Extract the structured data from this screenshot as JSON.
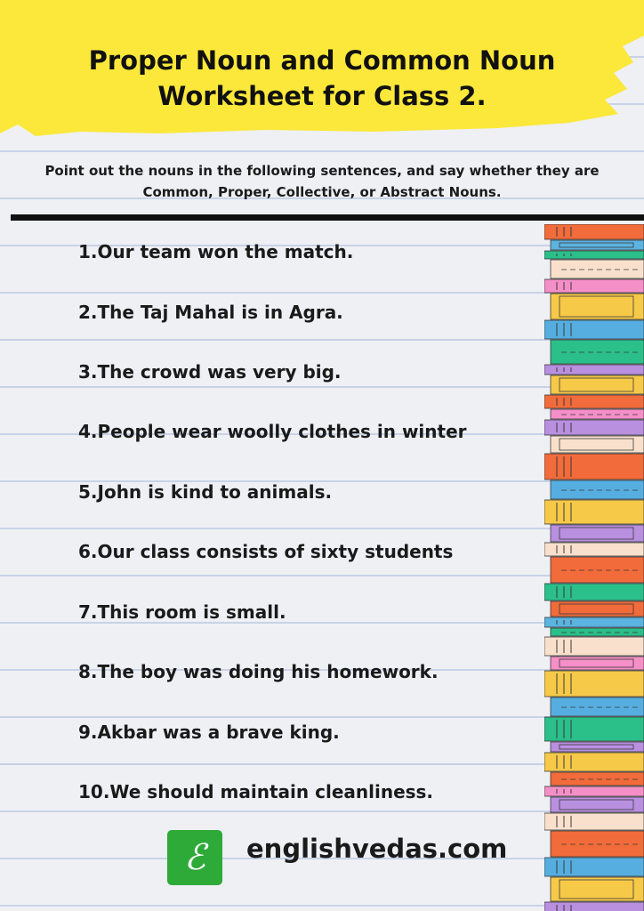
{
  "header": {
    "title_line1": "Proper Noun and Common Noun",
    "title_line2": "Worksheet for Class 2.",
    "highlight_color": "#fbe83a"
  },
  "instructions": "Point out the nouns in the following sentences, and say whether they are Common, Proper, Collective, or Abstract Nouns.",
  "questions": [
    "1.Our team won the match.",
    "2.The Taj Mahal is in Agra.",
    "3.The crowd was very big.",
    "4.People wear woolly clothes in winter",
    "5.John is kind to animals.",
    "6.Our class consists of sixty students",
    "7.This room is small.",
    "8.The boy was doing his homework.",
    "9.Akbar was a brave king.",
    "10.We should maintain cleanliness."
  ],
  "footer": {
    "logo_letter": "ℰ",
    "site": "englishvedas.com",
    "logo_color": "#2eaa38"
  },
  "book_colors": [
    "#f26b3a",
    "#5bb3e0",
    "#2bbf8a",
    "#f9e0cc",
    "#f58fc8",
    "#f7c948",
    "#56aee0",
    "#2bbf8a",
    "#b98fe0",
    "#f7c948",
    "#f26b3a",
    "#f58fc8",
    "#b98fe0",
    "#f9e0cc",
    "#f26b3a",
    "#56aee0",
    "#f7c948",
    "#b98fe0",
    "#f9e0cc",
    "#f26b3a",
    "#2bbf8a"
  ]
}
